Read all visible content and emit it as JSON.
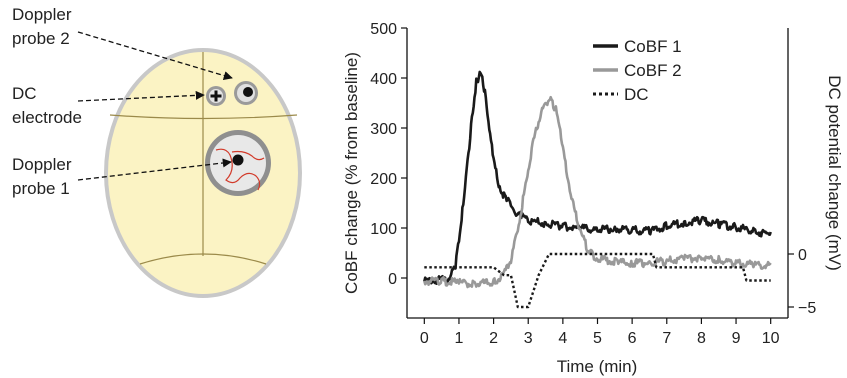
{
  "schematic": {
    "labels": {
      "probe2": [
        "Doppler",
        "probe 2"
      ],
      "dc": [
        "DC",
        "electrode"
      ],
      "probe1": [
        "Doppler",
        "probe 1"
      ]
    }
  },
  "chart_data": {
    "type": "line",
    "xlabel": "Time (min)",
    "ylabel_left": "CoBF change (% from baseline)",
    "ylabel_right": "DC potential change (mV)",
    "xlim": [
      -0.5,
      10.5
    ],
    "ylim_left": [
      -80,
      500
    ],
    "xticks": [
      0,
      1,
      2,
      3,
      4,
      5,
      6,
      7,
      8,
      9,
      10
    ],
    "yticks_left": [
      0,
      100,
      200,
      300,
      400,
      500
    ],
    "yticks_right": [
      0,
      -5
    ],
    "legend": {
      "placement": "top-right"
    },
    "series": [
      {
        "name": "CoBF 1",
        "color": "#1a1a1a",
        "style": "solid",
        "x": [
          0,
          0.3,
          0.6,
          0.75,
          0.9,
          1.0,
          1.1,
          1.2,
          1.3,
          1.4,
          1.5,
          1.6,
          1.7,
          1.8,
          1.9,
          2.0,
          2.1,
          2.2,
          2.3,
          2.4,
          2.5,
          2.6,
          2.7,
          2.8,
          3.0,
          3.5,
          4.0,
          4.5,
          5.0,
          5.5,
          6.0,
          6.5,
          7.0,
          7.5,
          8.0,
          8.5,
          9.0,
          9.5,
          10.0
        ],
        "y": [
          -3,
          0,
          0,
          5,
          30,
          80,
          140,
          200,
          270,
          340,
          395,
          412,
          395,
          350,
          290,
          240,
          205,
          180,
          168,
          158,
          150,
          140,
          130,
          128,
          120,
          112,
          108,
          103,
          100,
          103,
          100,
          98,
          108,
          115,
          120,
          112,
          105,
          98,
          92
        ]
      },
      {
        "name": "CoBF 2",
        "color": "#999999",
        "style": "solid",
        "x": [
          0,
          0.5,
          1.0,
          1.5,
          2.0,
          2.3,
          2.5,
          2.7,
          2.9,
          3.1,
          3.3,
          3.5,
          3.65,
          3.8,
          3.95,
          4.1,
          4.3,
          4.5,
          4.7,
          4.9,
          5.2,
          5.6,
          6.0,
          6.5,
          7.0,
          7.5,
          8.0,
          8.5,
          9.0,
          9.5,
          10.0
        ],
        "y": [
          -3,
          -2,
          -6,
          -8,
          -5,
          10,
          40,
          100,
          180,
          260,
          320,
          355,
          362,
          340,
          290,
          220,
          150,
          95,
          65,
          48,
          40,
          35,
          33,
          35,
          38,
          42,
          45,
          40,
          34,
          30,
          30
        ]
      },
      {
        "name": "DC",
        "color": "#1a1a1a",
        "style": "dotted",
        "axis": "right",
        "x": [
          0,
          1.5,
          2.0,
          2.3,
          2.5,
          2.6,
          2.7,
          3.0,
          3.15,
          3.3,
          3.6,
          6.6,
          6.7,
          9.2,
          9.3,
          10.0
        ],
        "y": [
          -1.25,
          -1.25,
          -1.25,
          -2.0,
          -2.0,
          -3.5,
          -5.0,
          -5.0,
          -3.5,
          -2.0,
          0,
          0,
          -1.25,
          -1.25,
          -2.5,
          -2.5
        ]
      }
    ]
  }
}
